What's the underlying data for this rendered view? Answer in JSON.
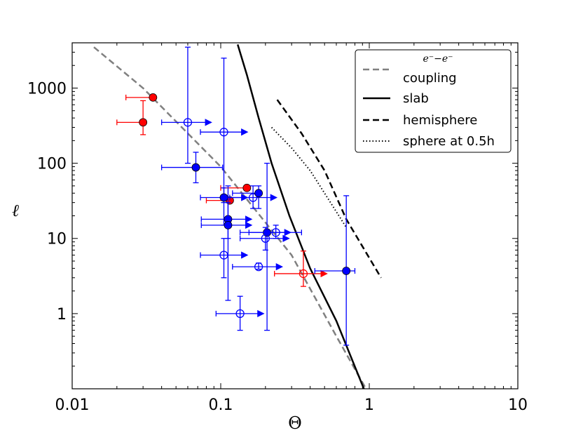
{
  "chart_data": {
    "type": "scatter",
    "title": "",
    "xlabel": "Θ",
    "ylabel": "ℓ",
    "xscale": "log",
    "yscale": "log",
    "xlim": [
      0.01,
      10
    ],
    "ylim": [
      0.1,
      4000
    ],
    "x_ticks": [
      {
        "value": 0.01,
        "label": "0.01"
      },
      {
        "value": 0.1,
        "label": "0.1"
      },
      {
        "value": 1,
        "label": "1"
      },
      {
        "value": 10,
        "label": "10"
      }
    ],
    "y_ticks": [
      {
        "value": 1,
        "label": "1"
      },
      {
        "value": 10,
        "label": "10"
      },
      {
        "value": 100,
        "label": "100"
      },
      {
        "value": 1000,
        "label": "1000"
      }
    ],
    "legend_position": "top-right",
    "lines": [
      {
        "name": "coupling",
        "math_label": "e⁻−e⁻",
        "label": "coupling",
        "style": "dashed",
        "color": "#808080",
        "points": [
          [
            0.014,
            3500
          ],
          [
            0.03,
            1000
          ],
          [
            0.1,
            90
          ],
          [
            0.3,
            6
          ],
          [
            0.6,
            0.5
          ],
          [
            0.95,
            0.1
          ]
        ]
      },
      {
        "name": "slab",
        "label": "slab",
        "style": "solid",
        "color": "#000000",
        "points": [
          [
            0.13,
            3800
          ],
          [
            0.15,
            1500
          ],
          [
            0.18,
            400
          ],
          [
            0.22,
            100
          ],
          [
            0.29,
            20
          ],
          [
            0.4,
            4
          ],
          [
            0.6,
            0.8
          ],
          [
            0.92,
            0.1
          ]
        ]
      },
      {
        "name": "hemisphere",
        "label": "hemisphere",
        "style": "dashed",
        "color": "#000000",
        "points": [
          [
            0.24,
            700
          ],
          [
            0.35,
            250
          ],
          [
            0.5,
            80
          ],
          [
            0.7,
            18
          ],
          [
            1.2,
            3
          ]
        ]
      },
      {
        "name": "sphere",
        "label": "sphere at 0.5h",
        "style": "dotted",
        "color": "#000000",
        "points": [
          [
            0.22,
            300
          ],
          [
            0.3,
            160
          ],
          [
            0.4,
            80
          ],
          [
            0.5,
            40
          ],
          [
            0.7,
            14
          ]
        ]
      }
    ],
    "points": [
      {
        "x": 0.035,
        "y": 750,
        "color": "#ff0000",
        "filled": true,
        "xerr": [
          0.012,
          0
        ],
        "yerr": [
          0,
          0
        ],
        "arrow": false
      },
      {
        "x": 0.03,
        "y": 350,
        "color": "#ff0000",
        "filled": true,
        "xerr": [
          0.01,
          0
        ],
        "yerr": [
          110,
          330
        ],
        "arrow": false
      },
      {
        "x": 0.15,
        "y": 47,
        "color": "#ff0000",
        "filled": true,
        "xerr": [
          0.05,
          0
        ],
        "yerr": [
          0,
          0
        ],
        "arrow": false
      },
      {
        "x": 0.115,
        "y": 32,
        "color": "#ff0000",
        "filled": true,
        "xerr": [
          0.035,
          0
        ],
        "yerr": [
          0,
          0
        ],
        "arrow": false
      },
      {
        "x": 0.36,
        "y": 3.4,
        "color": "#ff0000",
        "filled": false,
        "xerr": [
          0.13,
          0
        ],
        "yerr": [
          1.1,
          3.4
        ],
        "arrow": true
      },
      {
        "x": 0.06,
        "y": 350,
        "color": "#0000ff",
        "filled": false,
        "xerr": [
          0.02,
          0
        ],
        "yerr": [
          250,
          3150
        ],
        "arrow": true
      },
      {
        "x": 0.105,
        "y": 260,
        "color": "#0000ff",
        "filled": false,
        "xerr": [
          0.032,
          0
        ],
        "yerr": [
          230,
          2240
        ],
        "arrow": true
      },
      {
        "x": 0.068,
        "y": 88,
        "color": "#0000ff",
        "filled": true,
        "xerr": [
          0.028,
          0.035
        ],
        "yerr": [
          33,
          52
        ],
        "arrow": false
      },
      {
        "x": 0.105,
        "y": 35,
        "color": "#0000ff",
        "filled": true,
        "xerr": [
          0.032,
          0
        ],
        "yerr": [
          20,
          12
        ],
        "arrow": true
      },
      {
        "x": 0.165,
        "y": 35,
        "color": "#0000ff",
        "filled": false,
        "xerr": [
          0.05,
          0
        ],
        "yerr": [
          10,
          15
        ],
        "arrow": true
      },
      {
        "x": 0.18,
        "y": 40,
        "color": "#0000ff",
        "filled": true,
        "xerr": [
          0.06,
          0
        ],
        "yerr": [
          15,
          10
        ],
        "arrow": false
      },
      {
        "x": 0.112,
        "y": 18,
        "color": "#0000ff",
        "filled": true,
        "xerr": [
          0.038,
          0
        ],
        "yerr": [
          8,
          12
        ],
        "arrow": true
      },
      {
        "x": 0.112,
        "y": 15,
        "color": "#0000ff",
        "filled": true,
        "xerr": [
          0.038,
          0
        ],
        "yerr": [
          13.5,
          35
        ],
        "arrow": true
      },
      {
        "x": 0.205,
        "y": 12,
        "color": "#0000ff",
        "filled": true,
        "xerr": [
          0.07,
          0
        ],
        "yerr": [
          11.4,
          88
        ],
        "arrow": true
      },
      {
        "x": 0.235,
        "y": 12,
        "color": "#0000ff",
        "filled": false,
        "xerr": [
          0.08,
          0.115
        ],
        "yerr": [
          2,
          3
        ],
        "arrow": false
      },
      {
        "x": 0.2,
        "y": 10,
        "color": "#0000ff",
        "filled": false,
        "xerr": [
          0.065,
          0
        ],
        "yerr": [
          3,
          4
        ],
        "arrow": true
      },
      {
        "x": 0.105,
        "y": 6,
        "color": "#0000ff",
        "filled": false,
        "xerr": [
          0.032,
          0
        ],
        "yerr": [
          3,
          4
        ],
        "arrow": true
      },
      {
        "x": 0.18,
        "y": 4.2,
        "color": "#0000ff",
        "filled": false,
        "xerr": [
          0.06,
          0
        ],
        "yerr": [
          0.3,
          0.5
        ],
        "arrow": true
      },
      {
        "x": 0.135,
        "y": 1,
        "color": "#0000ff",
        "filled": false,
        "xerr": [
          0.042,
          0
        ],
        "yerr": [
          0.4,
          0.7
        ],
        "arrow": true
      },
      {
        "x": 0.7,
        "y": 3.7,
        "color": "#0000ff",
        "filled": true,
        "xerr": [
          0.27,
          0.1
        ],
        "yerr": [
          3.32,
          33.3
        ],
        "arrow": false
      }
    ]
  }
}
